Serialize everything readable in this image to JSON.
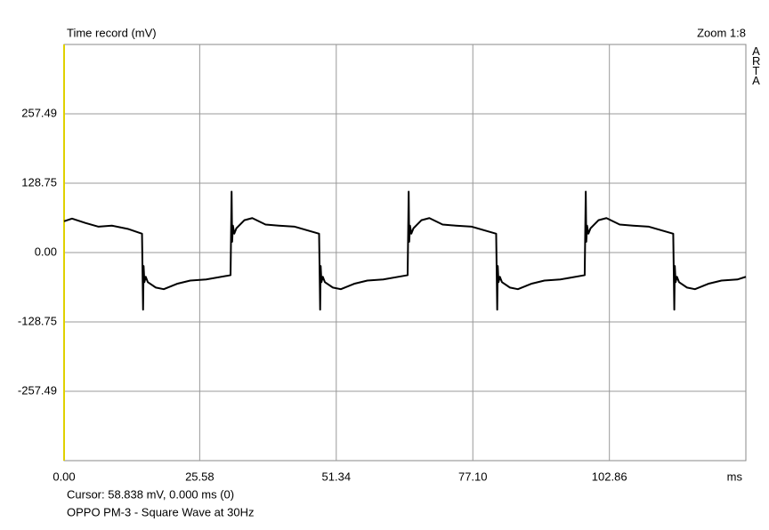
{
  "chart_data": {
    "type": "line",
    "title": "Time record (mV)",
    "zoom": "Zoom 1:8",
    "brand": "ARTA",
    "x_unit": "ms",
    "cursor": "Cursor:  58.838 mV,   0.000 ms  (0)",
    "caption": "OPPO PM-3 - Square Wave at 30Hz",
    "xlim": [
      0,
      128.6
    ],
    "ylim": [
      -386.24,
      386.24
    ],
    "xticks": [
      {
        "value": 0,
        "label": "0.00"
      },
      25.58,
      51.34,
      {
        "value": 77.1,
        "label": "77.10"
      },
      102.86
    ],
    "yticks": [
      257.49,
      128.75,
      {
        "value": 0,
        "label": "0.00"
      },
      -128.75,
      -257.49
    ],
    "grid": true,
    "series": [
      {
        "color": "#000000",
        "x": [
          0,
          1.5,
          4,
          6.5,
          9,
          12,
          14.7,
          14.9,
          15.0,
          15.15,
          15.4,
          15.8,
          17.3,
          18.8,
          21.3,
          23.8,
          26.8,
          31.4,
          31.6,
          31.7,
          31.85,
          32.1,
          32.5,
          34,
          35.5,
          38,
          40.5,
          43.5,
          48.1,
          48.3,
          48.4,
          48.55,
          48.8,
          49.2,
          50.7,
          52.2,
          54.7,
          57.2,
          60.2,
          64.8,
          65.0,
          65.1,
          65.25,
          65.5,
          65.9,
          67.4,
          68.9,
          71.4,
          73.9,
          76.9,
          81.5,
          81.7,
          81.8,
          81.95,
          82.2,
          82.6,
          84.1,
          85.6,
          88.1,
          90.6,
          93.6,
          98.2,
          98.4,
          98.5,
          98.65,
          98.9,
          99.3,
          100.8,
          102.3,
          104.8,
          107.3,
          110.3,
          114.9,
          115.1,
          115.2,
          115.35,
          115.6,
          116,
          117.5,
          119,
          121.5,
          124,
          127,
          128.6
        ],
        "values": [
          58,
          63,
          55,
          48,
          50,
          44,
          35,
          -106,
          -25,
          -55,
          -45,
          -55,
          -65,
          -68,
          -58,
          -52,
          -50,
          -42,
          113,
          20,
          50,
          35,
          45,
          60,
          64,
          52,
          50,
          48,
          35,
          -106,
          -25,
          -55,
          -45,
          -55,
          -65,
          -68,
          -58,
          -52,
          -50,
          -42,
          113,
          20,
          50,
          35,
          45,
          60,
          64,
          52,
          50,
          48,
          35,
          -106,
          -25,
          -55,
          -45,
          -55,
          -65,
          -68,
          -58,
          -52,
          -50,
          -42,
          113,
          20,
          50,
          35,
          45,
          60,
          64,
          52,
          50,
          48,
          35,
          -106,
          -25,
          -55,
          -45,
          -55,
          -65,
          -68,
          -58,
          -52,
          -50,
          -45
        ]
      }
    ]
  }
}
